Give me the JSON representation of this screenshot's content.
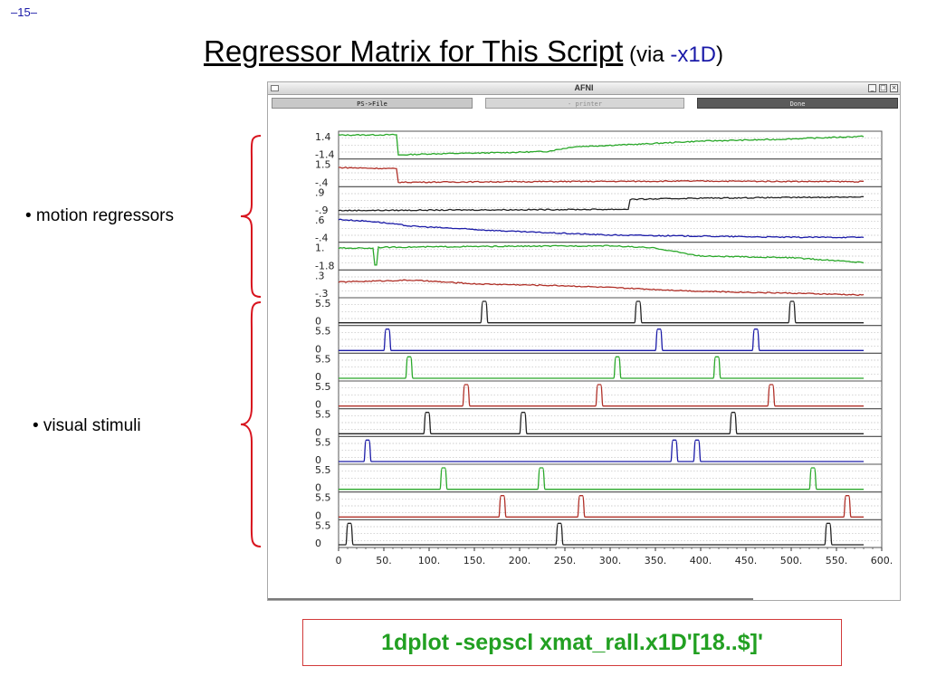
{
  "slide": {
    "page_number": "–15–",
    "title": "Regressor Matrix for This Script",
    "title_suffix_open": " (via ",
    "title_flag": "-x1D",
    "title_suffix_close": ")",
    "bullets": [
      {
        "text": "• motion regressors"
      },
      {
        "text": "• visual stimuli"
      }
    ],
    "command": "1dplot -sepscl xmat_rall.x1D'[18..$]'"
  },
  "window": {
    "title": "AFNI",
    "buttons": {
      "psfile": "PS->File",
      "printer": "- printer",
      "done": "Done"
    },
    "controls": {
      "minimize": "_",
      "maximize": "□",
      "close": "×"
    }
  },
  "colors": {
    "green": "#2aa82a",
    "red": "#b03028",
    "black": "#222222",
    "blue": "#1c1ca8",
    "brace": "#d8141e",
    "cmd_text": "#22a022",
    "cmd_border": "#d23a3a",
    "flag_text": "#1a1aa8"
  },
  "chart_data": {
    "type": "line",
    "xlim": [
      0,
      600
    ],
    "x_ticks": [
      "0",
      "50.",
      "100.",
      "150.",
      "200.",
      "250.",
      "300.",
      "350.",
      "400.",
      "450.",
      "500.",
      "550.",
      "600."
    ],
    "n_points": 580,
    "series": [
      {
        "color": "green",
        "ytop": "1.4",
        "ybot": "-1.4",
        "kind": "motion",
        "segments": [
          [
            0,
            1.25
          ],
          [
            65,
            1.3
          ],
          [
            66,
            -1.25
          ],
          [
            100,
            -1.1
          ],
          [
            180,
            -0.95
          ],
          [
            230,
            -0.8
          ],
          [
            260,
            -0.2
          ],
          [
            330,
            0.1
          ],
          [
            400,
            0.5
          ],
          [
            480,
            0.7
          ],
          [
            580,
            1.1
          ]
        ]
      },
      {
        "color": "red",
        "ytop": "1.5",
        "ybot": "-.4",
        "kind": "motion",
        "segments": [
          [
            0,
            1.0
          ],
          [
            65,
            0.9
          ],
          [
            66,
            -0.25
          ],
          [
            200,
            -0.2
          ],
          [
            400,
            -0.15
          ],
          [
            580,
            -0.2
          ]
        ]
      },
      {
        "color": "black",
        "ytop": ".9",
        "ybot": "-.9",
        "kind": "motion",
        "segments": [
          [
            0,
            -0.8
          ],
          [
            320,
            -0.7
          ],
          [
            322,
            0.1
          ],
          [
            400,
            0.2
          ],
          [
            500,
            0.25
          ],
          [
            580,
            0.3
          ]
        ]
      },
      {
        "color": "blue",
        "ytop": ".6",
        "ybot": "-.4",
        "kind": "motion",
        "segments": [
          [
            0,
            0.5
          ],
          [
            40,
            0.4
          ],
          [
            80,
            0.2
          ],
          [
            150,
            0.05
          ],
          [
            200,
            -0.05
          ],
          [
            300,
            -0.2
          ],
          [
            400,
            -0.25
          ],
          [
            500,
            -0.3
          ],
          [
            580,
            -0.3
          ]
        ]
      },
      {
        "color": "green",
        "ytop": "1.",
        "ybot": "-1.8",
        "kind": "motion",
        "segments": [
          [
            0,
            0.6
          ],
          [
            40,
            0.6
          ],
          [
            41,
            -1.5
          ],
          [
            42,
            0.7
          ],
          [
            150,
            0.8
          ],
          [
            300,
            0.9
          ],
          [
            350,
            0.6
          ],
          [
            400,
            -0.4
          ],
          [
            500,
            -0.6
          ],
          [
            580,
            -1.2
          ]
        ],
        "spike_at": 41
      },
      {
        "color": "red",
        "ytop": ".3",
        "ybot": "-.3",
        "kind": "motion",
        "segments": [
          [
            0,
            0.05
          ],
          [
            80,
            0.1
          ],
          [
            150,
            0.0
          ],
          [
            250,
            -0.05
          ],
          [
            300,
            -0.1
          ],
          [
            400,
            -0.2
          ],
          [
            500,
            -0.25
          ],
          [
            580,
            -0.3
          ]
        ]
      },
      {
        "color": "black",
        "ytop": "5.5",
        "ybot": "0",
        "kind": "stim",
        "onsets": [
          157,
          327,
          497
        ]
      },
      {
        "color": "blue",
        "ytop": "5.5",
        "ybot": "0",
        "kind": "stim",
        "onsets": [
          50,
          350,
          457
        ]
      },
      {
        "color": "green",
        "ytop": "5.5",
        "ybot": "0",
        "kind": "stim",
        "onsets": [
          74,
          304,
          414
        ]
      },
      {
        "color": "red",
        "ytop": "5.5",
        "ybot": "0",
        "kind": "stim",
        "onsets": [
          137,
          284,
          474
        ]
      },
      {
        "color": "black",
        "ytop": "5.5",
        "ybot": "0",
        "kind": "stim",
        "onsets": [
          94,
          200,
          432
        ]
      },
      {
        "color": "blue",
        "ytop": "5.5",
        "ybot": "0",
        "kind": "stim",
        "onsets": [
          28,
          367,
          392
        ]
      },
      {
        "color": "green",
        "ytop": "5.5",
        "ybot": "0",
        "kind": "stim",
        "onsets": [
          112,
          220,
          520
        ]
      },
      {
        "color": "red",
        "ytop": "5.5",
        "ybot": "0",
        "kind": "stim",
        "onsets": [
          177,
          264,
          558
        ]
      },
      {
        "color": "black",
        "ytop": "5.5",
        "ybot": "0",
        "kind": "stim",
        "onsets": [
          8,
          240,
          537
        ]
      }
    ]
  }
}
